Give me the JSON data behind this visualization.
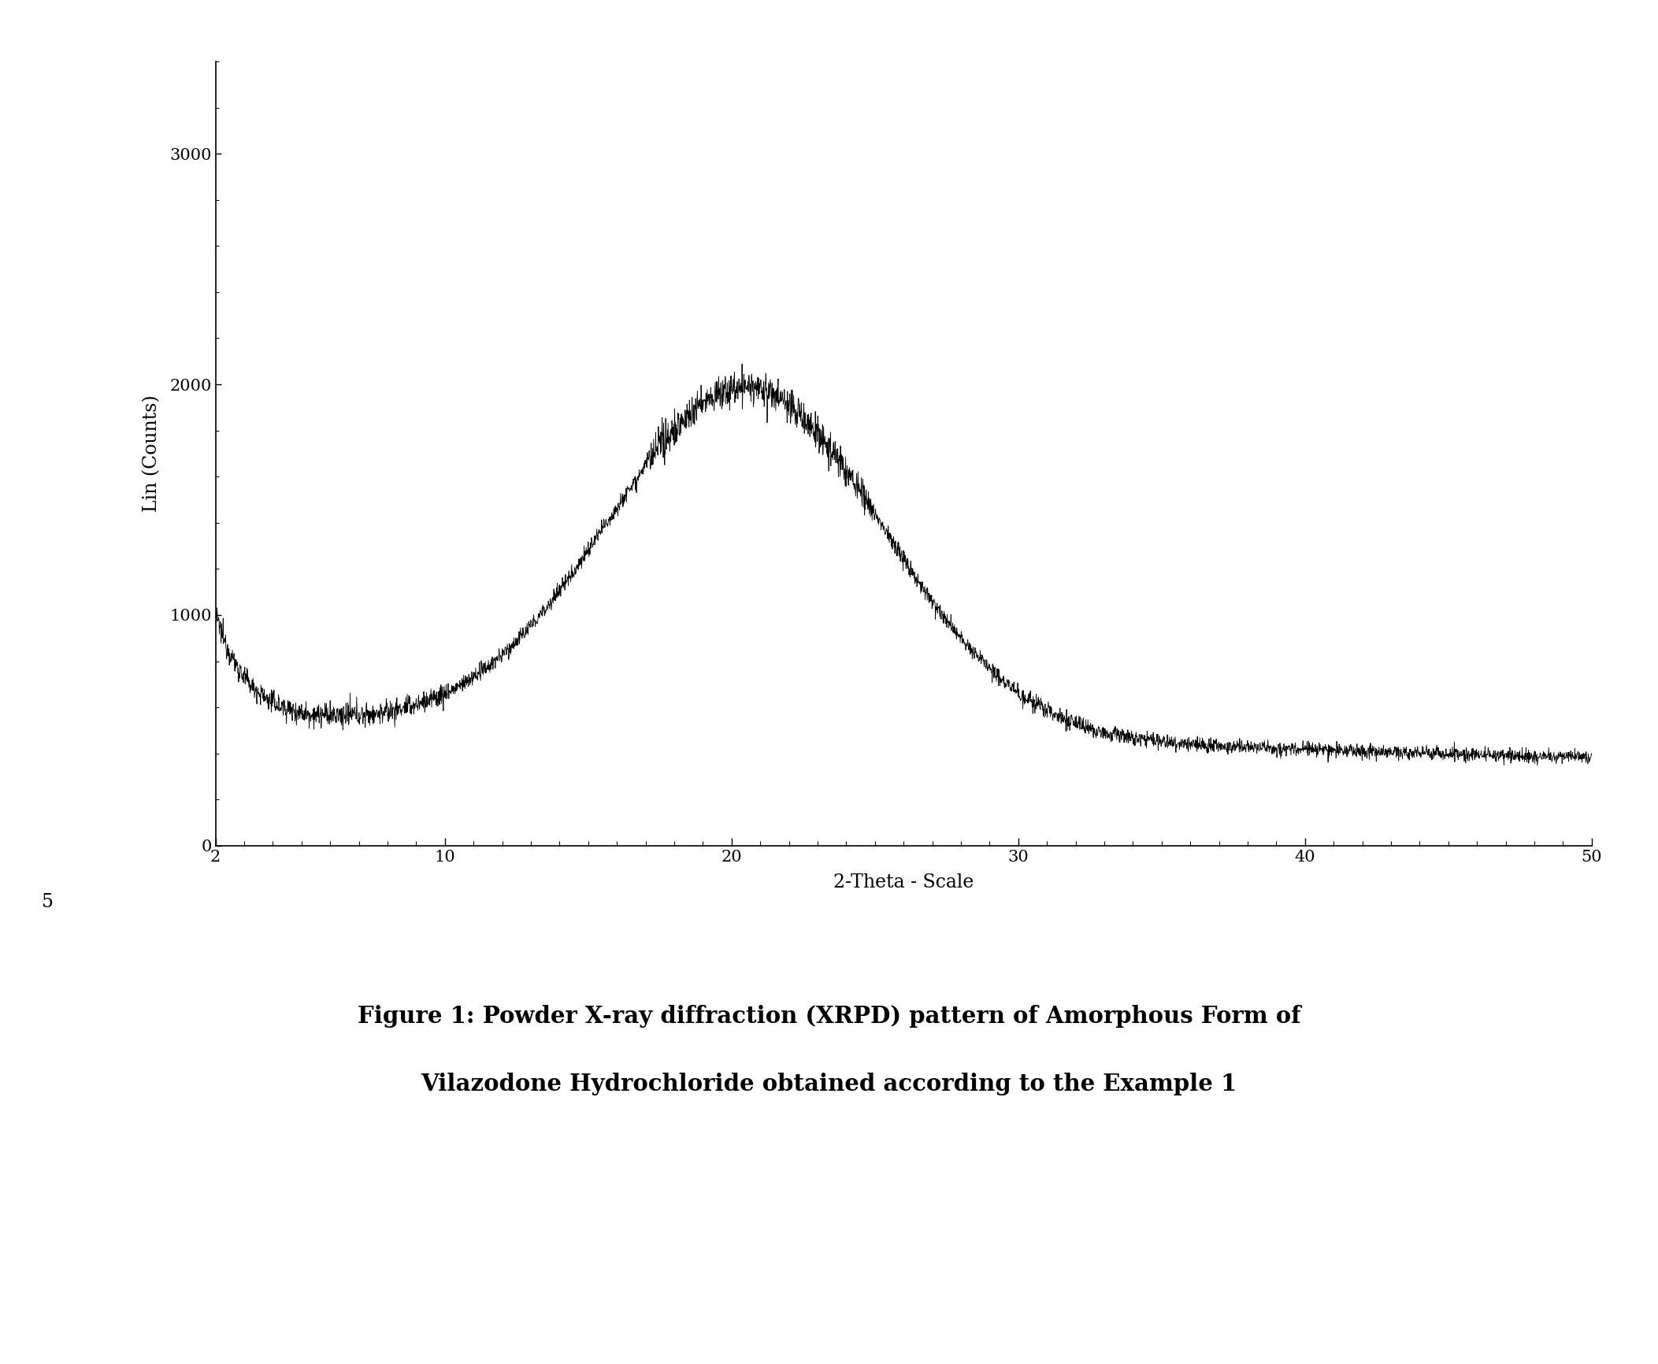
{
  "xlim": [
    2,
    50
  ],
  "ylim": [
    0,
    3400
  ],
  "xlabel": "2-Theta - Scale",
  "ylabel": "Lin (Counts)",
  "xticks": [
    2,
    10,
    20,
    30,
    40,
    50
  ],
  "yticks": [
    0,
    1000,
    2000,
    3000
  ],
  "line_color": "#000000",
  "background_color": "#ffffff",
  "figure_note": "5",
  "caption_line1": "Figure 1: Powder X-ray diffraction (XRPD) pattern of Amorphous Form of",
  "caption_line2": "Vilazodone Hydrochloride obtained according to the Example 1"
}
